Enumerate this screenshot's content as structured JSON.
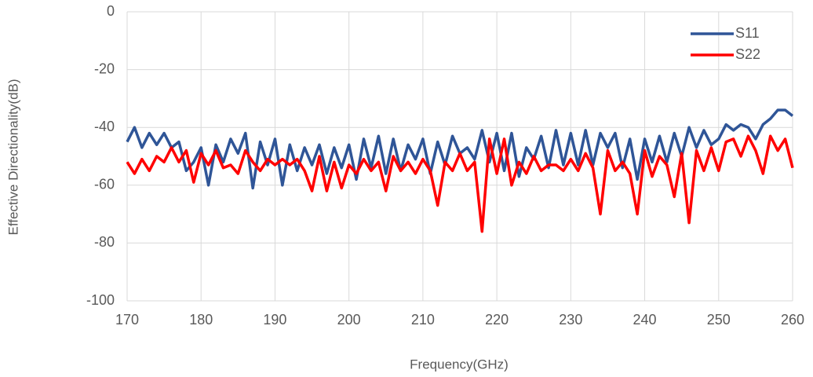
{
  "chart_data": {
    "type": "line",
    "xlabel": "Frequency(GHz)",
    "ylabel": "Effective Directionality(dB)",
    "x": [
      170,
      171,
      172,
      173,
      174,
      175,
      176,
      177,
      178,
      179,
      180,
      181,
      182,
      183,
      184,
      185,
      186,
      187,
      188,
      189,
      190,
      191,
      192,
      193,
      194,
      195,
      196,
      197,
      198,
      199,
      200,
      201,
      202,
      203,
      204,
      205,
      206,
      207,
      208,
      209,
      210,
      211,
      212,
      213,
      214,
      215,
      216,
      217,
      218,
      219,
      220,
      221,
      222,
      223,
      224,
      225,
      226,
      227,
      228,
      229,
      230,
      231,
      232,
      233,
      234,
      235,
      236,
      237,
      238,
      239,
      240,
      241,
      242,
      243,
      244,
      245,
      246,
      247,
      248,
      249,
      250,
      251,
      252,
      253,
      254,
      255,
      256,
      257,
      258,
      259,
      260
    ],
    "series": [
      {
        "name": "S11",
        "color": "#2f5597",
        "values": [
          -45,
          -40,
          -47,
          -42,
          -46,
          -42,
          -47,
          -45,
          -55,
          -52,
          -47,
          -60,
          -46,
          -52,
          -44,
          -49,
          -42,
          -61,
          -45,
          -53,
          -44,
          -60,
          -46,
          -55,
          -47,
          -53,
          -46,
          -56,
          -47,
          -54,
          -46,
          -58,
          -44,
          -54,
          -43,
          -56,
          -44,
          -55,
          -46,
          -51,
          -44,
          -56,
          -45,
          -53,
          -43,
          -49,
          -47,
          -51,
          -41,
          -52,
          -42,
          -55,
          -42,
          -57,
          -47,
          -51,
          -43,
          -54,
          -41,
          -53,
          -42,
          -53,
          -41,
          -53,
          -42,
          -47,
          -42,
          -54,
          -44,
          -58,
          -44,
          -52,
          -43,
          -52,
          -42,
          -50,
          -40,
          -47,
          -41,
          -46,
          -44,
          -39,
          -41,
          -39,
          -40,
          -44,
          -39,
          -37,
          -34,
          -34,
          -36
        ]
      },
      {
        "name": "S22",
        "color": "#ff0000",
        "values": [
          -52,
          -56,
          -51,
          -55,
          -50,
          -52,
          -47,
          -52,
          -48,
          -59,
          -49,
          -53,
          -48,
          -54,
          -53,
          -56,
          -48,
          -52,
          -55,
          -51,
          -53,
          -51,
          -53,
          -51,
          -55,
          -62,
          -50,
          -62,
          -52,
          -61,
          -53,
          -56,
          -51,
          -55,
          -52,
          -62,
          -50,
          -55,
          -52,
          -56,
          -51,
          -55,
          -67,
          -52,
          -55,
          -49,
          -55,
          -52,
          -76,
          -44,
          -56,
          -44,
          -60,
          -52,
          -56,
          -50,
          -55,
          -53,
          -53,
          -55,
          -51,
          -55,
          -49,
          -54,
          -70,
          -48,
          -55,
          -52,
          -56,
          -70,
          -48,
          -57,
          -50,
          -53,
          -64,
          -49,
          -73,
          -48,
          -55,
          -47,
          -55,
          -45,
          -44,
          -50,
          -43,
          -48,
          -56,
          -43,
          -48,
          -44,
          -54
        ]
      }
    ],
    "xlim": [
      170,
      260
    ],
    "xticks": [
      170,
      180,
      190,
      200,
      210,
      220,
      230,
      240,
      250,
      260
    ],
    "ylim": [
      -100,
      0
    ],
    "yticks": [
      0,
      -20,
      -40,
      -60,
      -80,
      -100
    ],
    "grid": true,
    "legend": "upper right"
  }
}
